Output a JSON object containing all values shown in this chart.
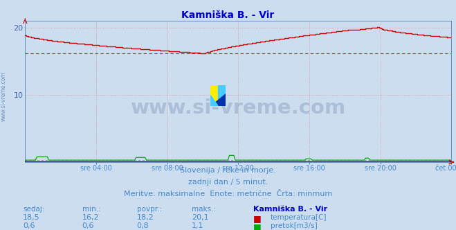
{
  "title": "Kamniška B. - Vir",
  "bg_color": "#ccddf0",
  "fig_bg_color": "#ccddf0",
  "grid_color": "#e09090",
  "ylabel_color": "#4060b0",
  "x_tick_labels": [
    "sre 04:00",
    "sre 08:00",
    "sre 12:00",
    "sre 16:00",
    "sre 20:00",
    "čet 00:00"
  ],
  "x_tick_positions": [
    48,
    96,
    144,
    192,
    240,
    288
  ],
  "n_points": 289,
  "y_min": 0,
  "y_max": 21,
  "y_ticks": [
    0,
    10,
    20
  ],
  "temp_min_line": 16.2,
  "temp_color": "#cc0000",
  "flow_color": "#00aa00",
  "blue_line_color": "#0000cc",
  "title_color": "#0000cc",
  "title_fontsize": 10,
  "subtitle_lines": [
    "Slovenija / reke in morje.",
    "zadnji dan / 5 minut.",
    "Meritve: maksimalne  Enote: metrične  Črta: minmum"
  ],
  "subtitle_color": "#4488cc",
  "subtitle_fontsize": 8,
  "table_header": [
    "sedaj:",
    "min.:",
    "povpr.:",
    "maks.:",
    "Kamniška B. - Vir"
  ],
  "table_row1": [
    "18,5",
    "16,2",
    "18,2",
    "20,1"
  ],
  "table_row2": [
    "0,6",
    "0,6",
    "0,8",
    "1,1"
  ],
  "table_label1": "temperatura[C]",
  "table_label2": "pretok[m3/s]",
  "watermark": "www.si-vreme.com",
  "watermark_color": "#1a3a6a",
  "watermark_alpha": 0.18,
  "side_watermark_color": "#3060a0",
  "side_watermark_alpha": 0.6
}
